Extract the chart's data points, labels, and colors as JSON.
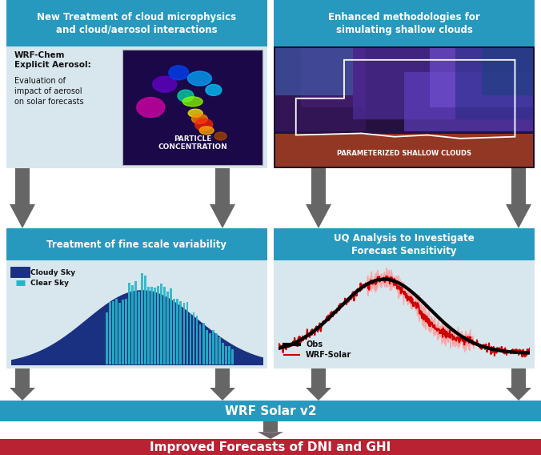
{
  "bg_color": "#ffffff",
  "teal_color": "#2899be",
  "red_color": "#b82232",
  "arrow_color": "#666666",
  "panel_header_color": "#2899be",
  "panel_body_bg": "#d8e6ed",
  "chart_bg": "#d0dde6",
  "top_left_title": "New Treatment of cloud microphysics\nand cloud/aerosol interactions",
  "top_right_title": "Enhanced methodologies for\nsimulating shallow clouds",
  "bottom_left_title": "Treatment of fine scale variability",
  "bottom_right_title": "UQ Analysis to Investigate\nForecast Sensitivity",
  "wrf_solar_text": "WRF Solar v2",
  "improved_text": "Improved Forecasts of DNI and GHI",
  "particle_label": "PARTICLE\nCONCENTRATION",
  "param_label": "PARAMETERIZED SHALLOW CLOUDS",
  "wrf_chem_bold": "WRF-Chem\nExplicit Aerosol:",
  "wrf_chem_normal": "Evaluation of\nimpact of aerosol\non solar forecasts",
  "cloudy_sky_color": "#1a3080",
  "clear_sky_color": "#28b4c8",
  "obs_color": "#000000",
  "wrf_solar_line_color": "#cc0000",
  "title_white": "#ffffff",
  "title_dark": "#111111"
}
